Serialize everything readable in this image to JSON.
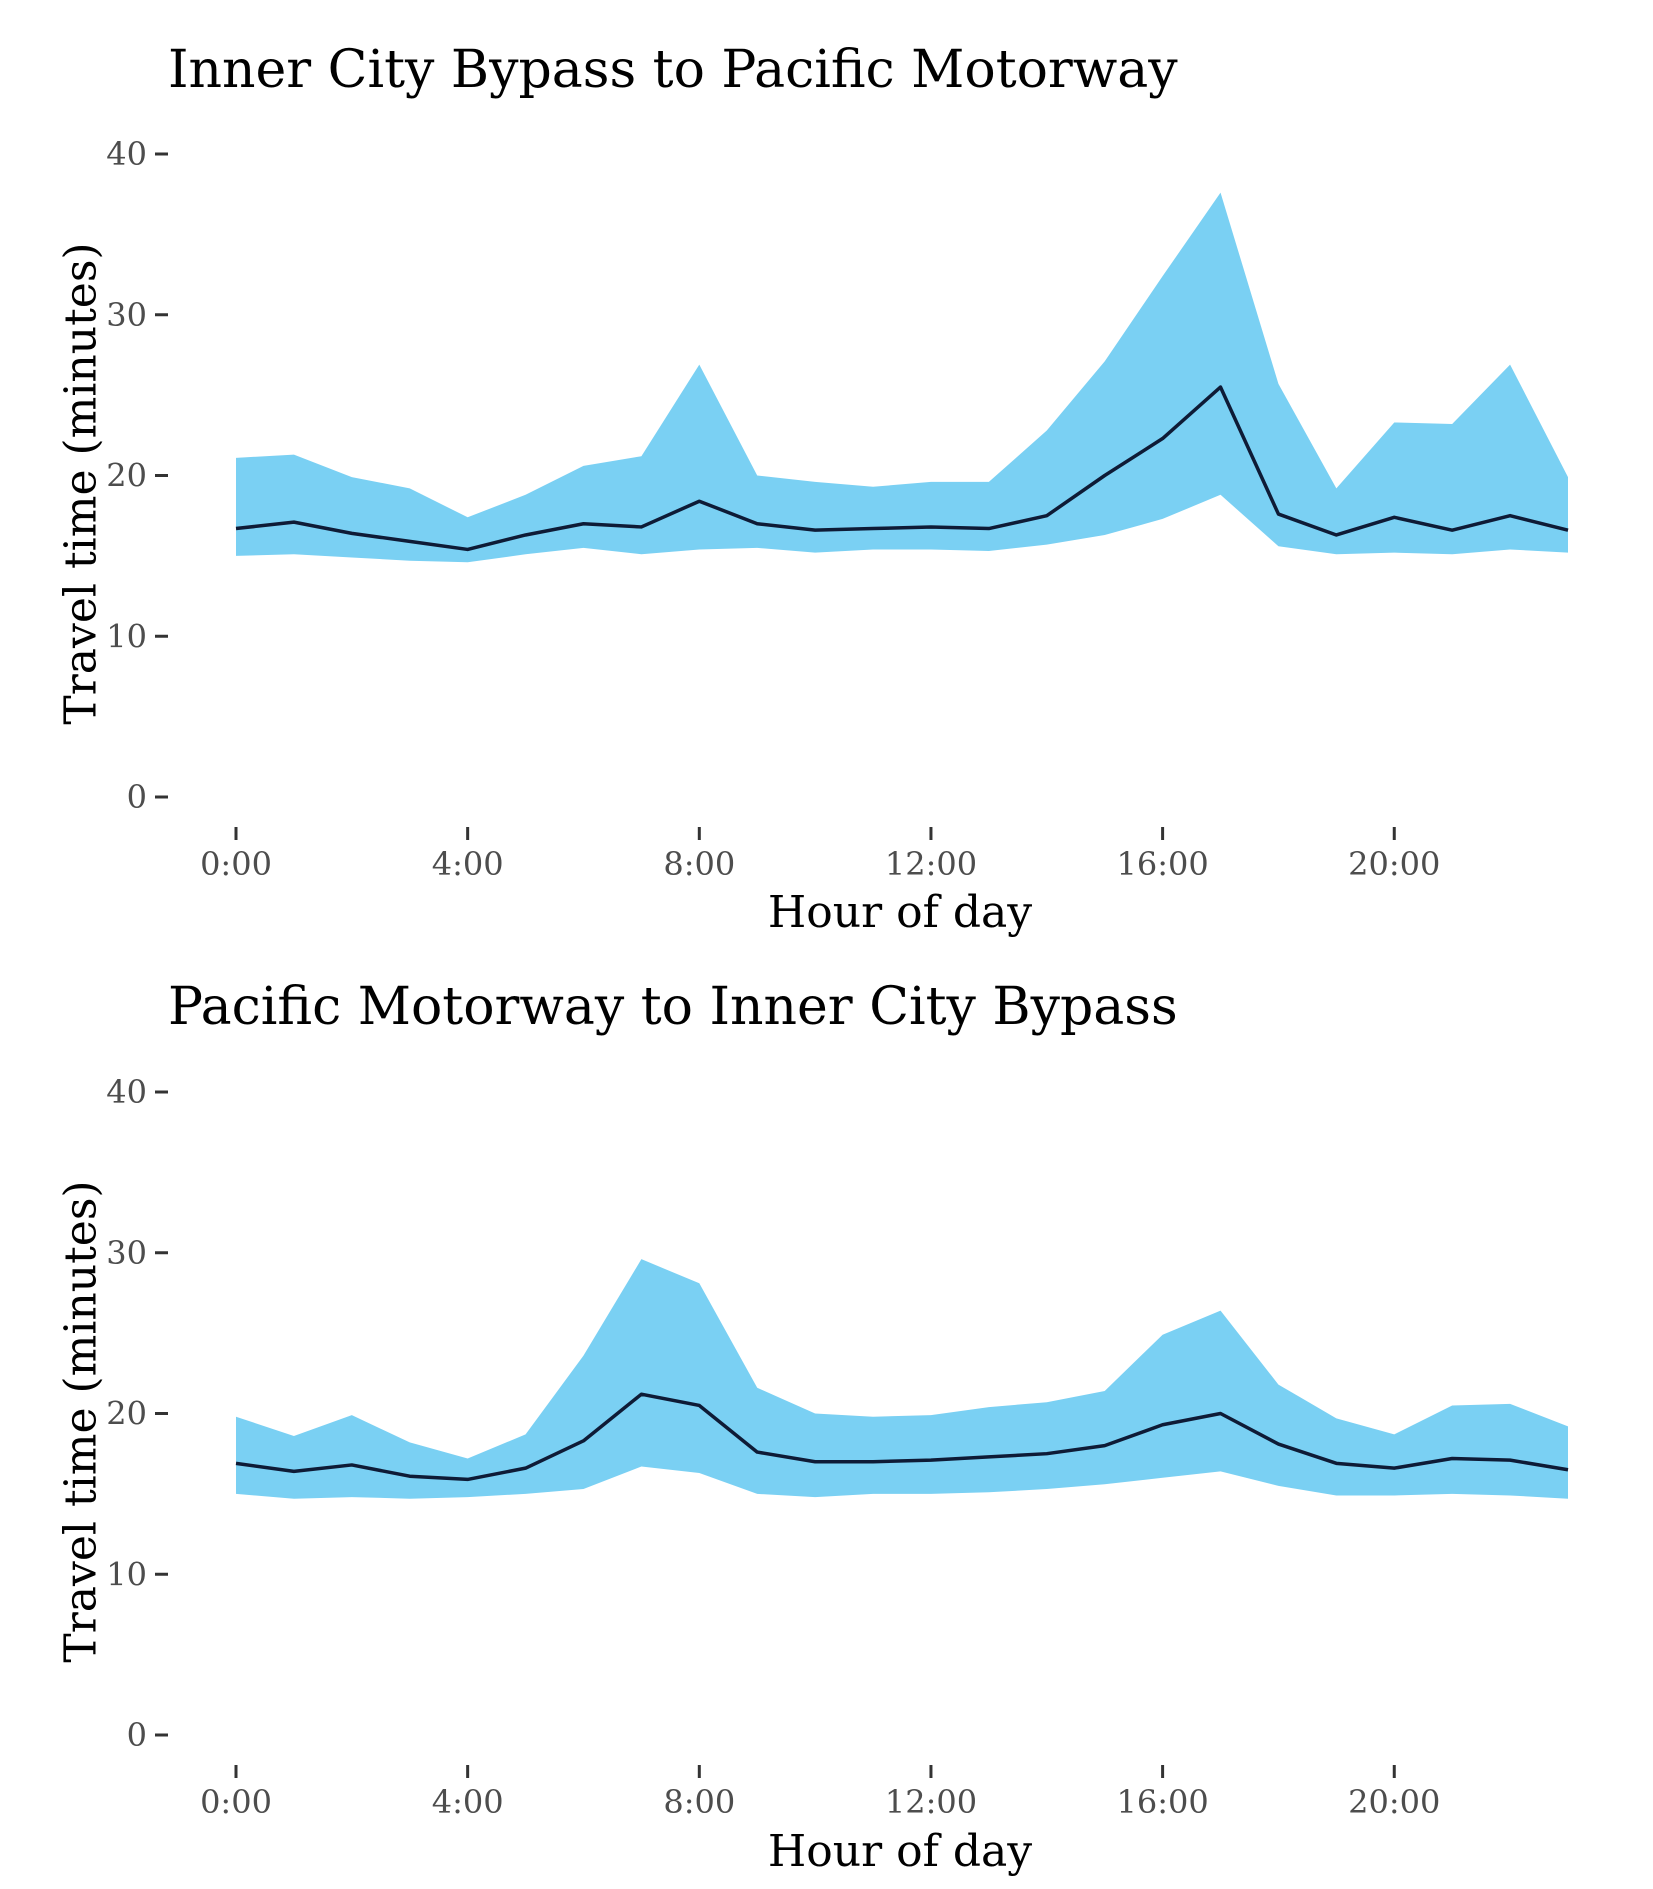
{
  "style": {
    "band_color": "#7AD0F3",
    "line_color": "#0E1B36",
    "tick_text_color": "#4d4d4d"
  },
  "chart_data": [
    {
      "type": "area",
      "title": "Inner City Bypass to Pacific Motorway",
      "xlabel": "Hour of day",
      "ylabel": "Travel time (minutes)",
      "ylim": [
        0,
        40
      ],
      "xlim": [
        0,
        23
      ],
      "grid": false,
      "x": [
        0,
        1,
        2,
        3,
        4,
        5,
        6,
        7,
        8,
        9,
        10,
        11,
        12,
        13,
        14,
        15,
        16,
        17,
        18,
        19,
        20,
        21,
        22,
        23
      ],
      "x_ticks": [
        0,
        4,
        8,
        12,
        16,
        20
      ],
      "x_tick_labels": [
        "0:00",
        "4:00",
        "8:00",
        "12:00",
        "16:00",
        "20:00"
      ],
      "y_ticks": [
        0,
        10,
        20,
        30,
        40
      ],
      "y_tick_labels": [
        "0",
        "10",
        "20",
        "30",
        "40"
      ],
      "band_lower": [
        15.0,
        15.1,
        14.9,
        14.7,
        14.6,
        15.1,
        15.5,
        15.1,
        15.4,
        15.5,
        15.2,
        15.4,
        15.4,
        15.3,
        15.7,
        16.3,
        17.3,
        18.8,
        15.6,
        15.1,
        15.2,
        15.1,
        15.4,
        15.2
      ],
      "band_upper": [
        21.1,
        21.3,
        19.9,
        19.2,
        17.4,
        18.8,
        20.6,
        21.2,
        26.9,
        20.0,
        19.6,
        19.3,
        19.6,
        19.6,
        22.8,
        27.1,
        32.4,
        37.6,
        25.7,
        19.2,
        23.3,
        23.2,
        26.9,
        19.9
      ],
      "median": [
        16.7,
        17.1,
        16.4,
        15.9,
        15.4,
        16.3,
        17.0,
        16.8,
        18.4,
        17.0,
        16.6,
        16.7,
        16.8,
        16.7,
        17.5,
        20.0,
        22.3,
        25.5,
        17.6,
        16.3,
        17.4,
        16.6,
        17.5,
        16.6
      ]
    },
    {
      "type": "area",
      "title": "Pacific Motorway to Inner City Bypass",
      "xlabel": "Hour of day",
      "ylabel": "Travel time (minutes)",
      "ylim": [
        0,
        40
      ],
      "xlim": [
        0,
        23
      ],
      "grid": false,
      "x": [
        0,
        1,
        2,
        3,
        4,
        5,
        6,
        7,
        8,
        9,
        10,
        11,
        12,
        13,
        14,
        15,
        16,
        17,
        18,
        19,
        20,
        21,
        22,
        23
      ],
      "x_ticks": [
        0,
        4,
        8,
        12,
        16,
        20
      ],
      "x_tick_labels": [
        "0:00",
        "4:00",
        "8:00",
        "12:00",
        "16:00",
        "20:00"
      ],
      "y_ticks": [
        0,
        10,
        20,
        30,
        40
      ],
      "y_tick_labels": [
        "0",
        "10",
        "20",
        "30",
        "40"
      ],
      "band_lower": [
        15.0,
        14.7,
        14.8,
        14.7,
        14.8,
        15.0,
        15.3,
        16.7,
        16.3,
        15.0,
        14.8,
        15.0,
        15.0,
        15.1,
        15.3,
        15.6,
        16.0,
        16.4,
        15.5,
        14.9,
        14.9,
        15.0,
        14.9,
        14.7
      ],
      "band_upper": [
        19.8,
        18.6,
        19.9,
        18.2,
        17.2,
        18.7,
        23.6,
        29.6,
        28.1,
        21.6,
        20.0,
        19.8,
        19.9,
        20.4,
        20.7,
        21.4,
        24.9,
        26.4,
        21.8,
        19.7,
        18.7,
        20.5,
        20.6,
        19.2
      ],
      "median": [
        16.9,
        16.4,
        16.8,
        16.1,
        15.9,
        16.6,
        18.3,
        21.2,
        20.5,
        17.6,
        17.0,
        17.0,
        17.1,
        17.3,
        17.5,
        18.0,
        19.3,
        20.0,
        18.1,
        16.9,
        16.6,
        17.2,
        17.1,
        16.5
      ]
    }
  ]
}
